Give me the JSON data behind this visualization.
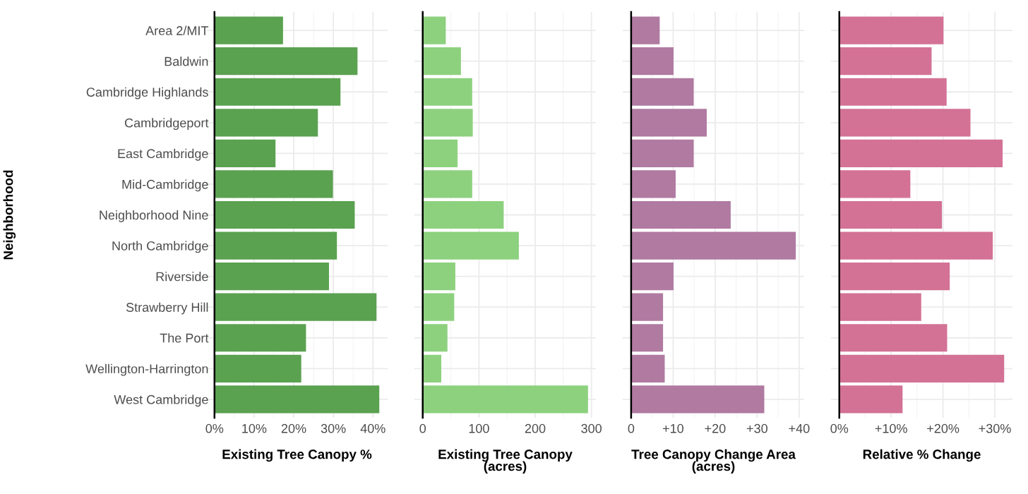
{
  "chart_data": [
    {
      "type": "bar",
      "orientation": "horizontal",
      "ylabel": "Neighborhood",
      "xlabel": "Existing Tree Canopy %",
      "categories": [
        "Area 2/MIT",
        "Baldwin",
        "Cambridge Highlands",
        "Cambridgeport",
        "East Cambridge",
        "Mid-Cambridge",
        "Neighborhood Nine",
        "North Cambridge",
        "Riverside",
        "Strawberry Hill",
        "The Port",
        "Wellington-Harrington",
        "West Cambridge"
      ],
      "color": "#5aa150",
      "values": [
        17.3,
        36.1,
        31.8,
        26.1,
        15.4,
        29.9,
        35.4,
        30.9,
        28.9,
        40.9,
        23.1,
        21.9,
        41.6
      ],
      "xlim": [
        -2.1,
        43.7
      ],
      "xticks": [
        {
          "value": 0,
          "label": "0%"
        },
        {
          "value": 10,
          "label": "10%"
        },
        {
          "value": 20,
          "label": "20%"
        },
        {
          "value": 30,
          "label": "30%"
        },
        {
          "value": 40,
          "label": "40%"
        }
      ],
      "grid": true
    },
    {
      "type": "bar",
      "orientation": "horizontal",
      "xlabel": "Existing Tree Canopy\n(acres)",
      "categories": [
        null,
        null,
        null,
        null,
        null,
        null,
        null,
        null,
        null,
        null,
        null,
        null,
        null
      ],
      "color": "#8dd17e",
      "values": [
        41,
        68,
        88,
        89,
        62,
        88,
        144,
        171,
        58,
        56,
        44,
        33,
        294
      ],
      "xlim": [
        -14.7,
        308
      ],
      "xticks": [
        0,
        100,
        200,
        300
      ],
      "grid": true,
      "tick_labels": "x"
    },
    {
      "type": "bar",
      "orientation": "horizontal",
      "xlabel": "Tree Canopy Change Area\n(acres)",
      "categories": [
        null,
        null,
        null,
        null,
        null,
        null,
        null,
        null,
        null,
        null,
        null,
        null,
        null
      ],
      "color": "#b07aa1",
      "values": [
        6.8,
        10.1,
        14.9,
        18.0,
        14.9,
        10.6,
        23.7,
        39.2,
        10.1,
        7.6,
        7.6,
        8.0,
        31.7
      ],
      "xlim": [
        -2.0,
        41.2
      ],
      "xticks": [
        0,
        {
          "value": 10,
          "label": "+10"
        },
        {
          "value": 20,
          "label": "+20"
        },
        {
          "value": 30,
          "label": "+30"
        },
        {
          "value": 40,
          "label": "+40"
        }
      ],
      "grid": true,
      "tick_labels": "x"
    },
    {
      "type": "bar",
      "orientation": "horizontal",
      "xlabel": "Relative % Change",
      "categories": [
        null,
        null,
        null,
        null,
        null,
        null,
        null,
        null,
        null,
        null,
        null,
        null,
        null
      ],
      "color": "#d37295",
      "values": [
        20.1,
        17.8,
        20.7,
        25.3,
        31.5,
        13.7,
        19.8,
        29.6,
        21.3,
        15.8,
        20.8,
        31.8,
        12.2
      ],
      "xlim": [
        -1.6,
        33.4
      ],
      "xticks": [
        {
          "value": 0,
          "label": "0%"
        },
        {
          "value": 10,
          "label": "+10%"
        },
        {
          "value": 20,
          "label": "+20%"
        },
        {
          "value": 30,
          "label": "+30%"
        }
      ],
      "grid": true,
      "tick_labels": "x"
    }
  ]
}
